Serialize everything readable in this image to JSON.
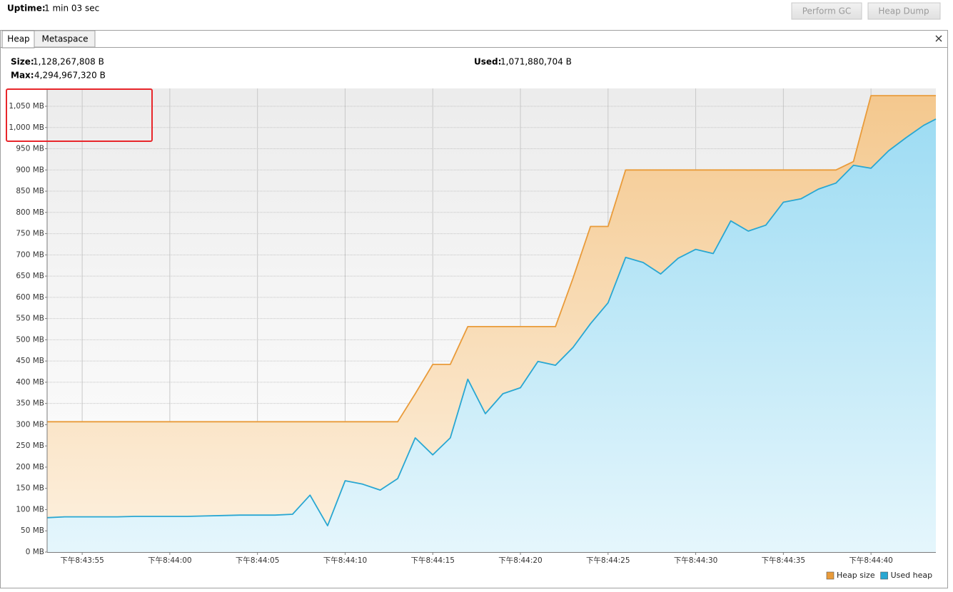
{
  "header": {
    "uptime_label": "Uptime:",
    "uptime": "1 min 03 sec",
    "buttons": [
      "Perform GC",
      "Heap Dump"
    ]
  },
  "tabs": [
    "Heap",
    "Metaspace"
  ],
  "stats": [
    {
      "label": "Size:",
      "value": "1,128,267,808 B"
    },
    {
      "label": "Max:",
      "value": "4,294,967,320 B"
    },
    {
      "label": "Used:",
      "value": "1,071,880,704 B"
    }
  ],
  "chart_data": {
    "type": "area",
    "x": [
      53,
      54,
      55,
      56,
      57,
      58,
      59,
      60,
      61,
      62,
      63,
      64,
      65,
      66,
      67,
      68,
      69,
      70,
      71,
      72,
      73,
      74,
      75,
      76,
      77,
      78,
      79,
      80,
      81,
      82,
      83,
      84,
      85,
      86,
      87,
      88,
      89,
      90,
      91,
      92,
      93,
      94,
      95,
      96,
      97,
      98,
      99,
      100,
      101,
      102,
      103,
      103.7
    ],
    "series": [
      {
        "name": "Heap size",
        "color": "#e99b3a",
        "values": [
          307,
          307,
          307,
          307,
          307,
          307,
          307,
          307,
          307,
          307,
          307,
          307,
          307,
          307,
          307,
          307,
          307,
          307,
          307,
          307,
          307,
          373,
          442,
          442,
          531,
          531,
          531,
          531,
          531,
          531,
          645,
          767,
          767,
          900,
          900,
          900,
          900,
          900,
          900,
          900,
          900,
          900,
          900,
          900,
          900,
          900,
          920,
          1075,
          1075,
          1075,
          1075,
          1075
        ]
      },
      {
        "name": "Used heap",
        "color": "#29a7d2",
        "values": [
          81,
          83,
          83,
          83,
          83,
          84,
          84,
          84,
          84,
          85,
          86,
          87,
          87,
          87,
          89,
          134,
          62,
          168,
          160,
          146,
          173,
          269,
          229,
          269,
          407,
          326,
          373,
          387,
          449,
          440,
          482,
          538,
          587,
          694,
          682,
          655,
          692,
          713,
          703,
          780,
          756,
          770,
          824,
          832,
          855,
          869,
          911,
          904,
          945,
          976,
          1005,
          1020
        ]
      }
    ],
    "xlim": [
      53,
      103.7
    ],
    "xticks": [
      {
        "value": 55,
        "label": "下午8:43:55"
      },
      {
        "value": 60,
        "label": "下午8:44:00"
      },
      {
        "value": 65,
        "label": "下午8:44:05"
      },
      {
        "value": 70,
        "label": "下午8:44:10"
      },
      {
        "value": 75,
        "label": "下午8:44:15"
      },
      {
        "value": 80,
        "label": "下午8:44:20"
      },
      {
        "value": 85,
        "label": "下午8:44:25"
      },
      {
        "value": 90,
        "label": "下午8:44:30"
      },
      {
        "value": 95,
        "label": "下午8:44:35"
      },
      {
        "value": 100,
        "label": "下午8:44:40"
      }
    ],
    "ylim": [
      0,
      1092
    ],
    "yticks": [
      {
        "value": 0,
        "label": "0 MB"
      },
      {
        "value": 50,
        "label": "50 MB"
      },
      {
        "value": 100,
        "label": "100 MB"
      },
      {
        "value": 150,
        "label": "150 MB"
      },
      {
        "value": 200,
        "label": "200 MB"
      },
      {
        "value": 250,
        "label": "250 MB"
      },
      {
        "value": 300,
        "label": "300 MB"
      },
      {
        "value": 350,
        "label": "350 MB"
      },
      {
        "value": 400,
        "label": "400 MB"
      },
      {
        "value": 450,
        "label": "450 MB"
      },
      {
        "value": 500,
        "label": "500 MB"
      },
      {
        "value": 550,
        "label": "550 MB"
      },
      {
        "value": 600,
        "label": "600 MB"
      },
      {
        "value": 650,
        "label": "650 MB"
      },
      {
        "value": 700,
        "label": "700 MB"
      },
      {
        "value": 750,
        "label": "750 MB"
      },
      {
        "value": 800,
        "label": "800 MB"
      },
      {
        "value": 850,
        "label": "850 MB"
      },
      {
        "value": 900,
        "label": "900 MB"
      },
      {
        "value": 950,
        "label": "950 MB"
      },
      {
        "value": 1000,
        "label": "1,000 MB"
      },
      {
        "value": 1050,
        "label": "1,050 MB"
      }
    ],
    "grid": true,
    "legend": "bottom-right"
  }
}
